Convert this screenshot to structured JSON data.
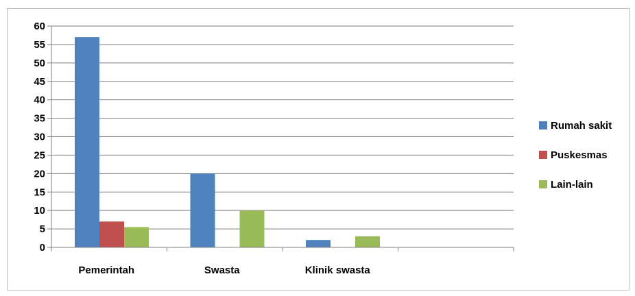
{
  "chart_data": {
    "type": "bar",
    "title": "",
    "xlabel": "",
    "ylabel": "",
    "categories": [
      "Pemerintah",
      "Swasta",
      "Klinik swasta",
      ""
    ],
    "series": [
      {
        "name": "Rumah sakit",
        "color": "#4f81bd",
        "values": [
          57,
          20,
          2,
          0
        ]
      },
      {
        "name": "Puskesmas",
        "color": "#c0504d",
        "values": [
          7,
          0,
          0,
          0
        ]
      },
      {
        "name": "Lain-lain",
        "color": "#9bbb59",
        "values": [
          5.5,
          10,
          3,
          0
        ]
      }
    ],
    "ylim": [
      0,
      60
    ],
    "yticks": [
      0,
      5,
      10,
      15,
      20,
      25,
      30,
      35,
      40,
      45,
      50,
      55,
      60
    ],
    "grid": true,
    "legend_position": "right"
  }
}
